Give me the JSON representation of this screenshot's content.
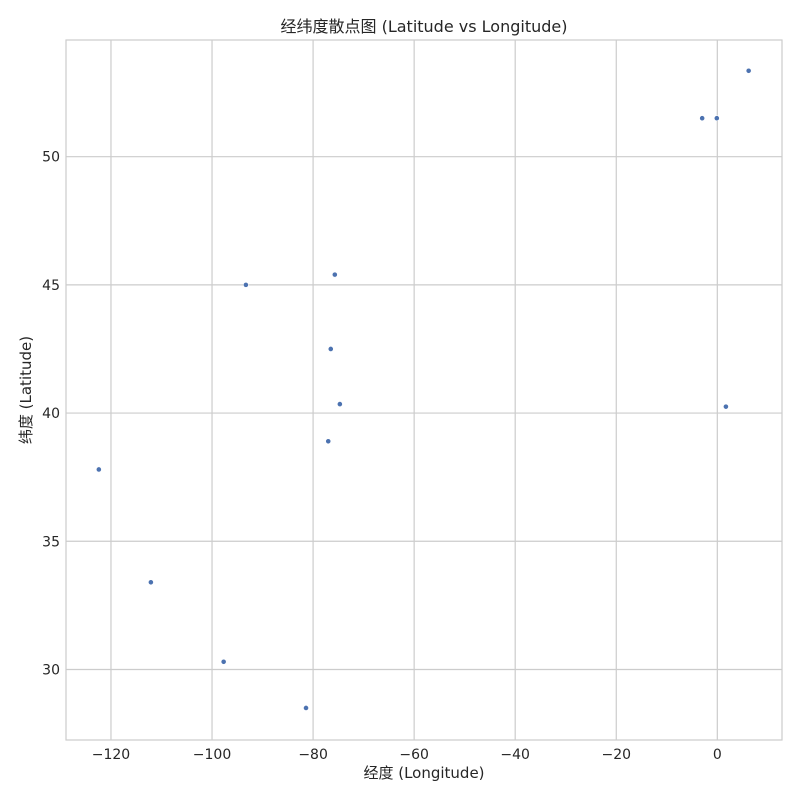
{
  "chart_data": {
    "type": "scatter",
    "title": "经纬度散点图 (Latitude vs Longitude)",
    "xlabel": "经度 (Longitude)",
    "ylabel": "纬度 (Latitude)",
    "xlim": [
      -128.9,
      12.8
    ],
    "ylim": [
      27.25,
      54.55
    ],
    "xticks": [
      -120,
      -100,
      -80,
      -60,
      -40,
      -20,
      0
    ],
    "yticks": [
      30,
      35,
      40,
      45,
      50
    ],
    "xtick_labels": [
      "−120",
      "−100",
      "−80",
      "−60",
      "−40",
      "−20",
      "0"
    ],
    "ytick_labels": [
      "30",
      "35",
      "40",
      "45",
      "50"
    ],
    "grid": true,
    "colors": {
      "marker": "#4c72b0",
      "grid": "#cccccc",
      "text": "#262626"
    },
    "series": [
      {
        "points": [
          {
            "x": -122.4,
            "y": 37.8
          },
          {
            "x": -112.1,
            "y": 33.4
          },
          {
            "x": -97.7,
            "y": 30.3
          },
          {
            "x": -93.3,
            "y": 45.0
          },
          {
            "x": -81.4,
            "y": 28.5
          },
          {
            "x": -77.0,
            "y": 38.9
          },
          {
            "x": -76.5,
            "y": 42.5
          },
          {
            "x": -75.7,
            "y": 45.4
          },
          {
            "x": -74.7,
            "y": 40.35
          },
          {
            "x": -3.0,
            "y": 51.5
          },
          {
            "x": -0.1,
            "y": 51.5
          },
          {
            "x": 1.7,
            "y": 40.25
          },
          {
            "x": 6.2,
            "y": 53.35
          }
        ]
      }
    ]
  }
}
